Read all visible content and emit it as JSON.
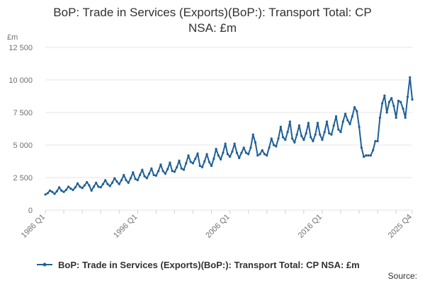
{
  "chart_data": {
    "type": "line",
    "title_line1": "BoP: Trade in Services (Exports)(BoP:): Transport Total: CP",
    "title_line2": "NSA: £m",
    "ylabel": "£m",
    "ylim": [
      0,
      12500
    ],
    "yticks": [
      0,
      2500,
      5000,
      7500,
      10000,
      12500
    ],
    "ytick_labels": [
      "0",
      "2 500",
      "5 000",
      "7 500",
      "10 000",
      "12 500"
    ],
    "xtick_labels": [
      "1986 Q1",
      "1996 Q1",
      "2006 Q1",
      "2016 Q1",
      "2025 Q4"
    ],
    "xtick_positions": [
      0,
      40,
      80,
      120,
      159
    ],
    "x_start": "1986 Q1",
    "x_end": "2025 Q4",
    "grid": true,
    "legend_position": "bottom",
    "series": [
      {
        "name": "BoP: Trade in Services (Exports)(BoP:): Transport Total: CP NSA: £m",
        "color": "#206095",
        "values": [
          1200,
          1300,
          1500,
          1400,
          1250,
          1450,
          1750,
          1500,
          1400,
          1550,
          1800,
          1650,
          1550,
          1750,
          2050,
          1800,
          1700,
          1900,
          2150,
          1900,
          1500,
          1800,
          2100,
          1800,
          1750,
          2000,
          2300,
          2000,
          1850,
          2100,
          2450,
          2200,
          2000,
          2300,
          2700,
          2300,
          2100,
          2450,
          2900,
          2400,
          2300,
          2700,
          3100,
          2600,
          2450,
          2800,
          3200,
          2700,
          2650,
          3000,
          3500,
          3000,
          2800,
          3150,
          3650,
          3000,
          2950,
          3300,
          3800,
          3200,
          3100,
          3600,
          4200,
          3700,
          3600,
          3950,
          4350,
          3400,
          3300,
          3750,
          4300,
          3700,
          3400,
          3950,
          4700,
          4200,
          3900,
          4400,
          5100,
          4300,
          4100,
          4500,
          5100,
          4400,
          4000,
          4400,
          4800,
          4400,
          4300,
          4800,
          5800,
          5200,
          4200,
          4300,
          4600,
          4300,
          4200,
          4800,
          5500,
          5000,
          4900,
          5500,
          6400,
          5600,
          5400,
          6000,
          6800,
          5500,
          5200,
          5800,
          6500,
          5700,
          5400,
          5900,
          6700,
          5600,
          5300,
          5800,
          6700,
          5800,
          5400,
          6000,
          6800,
          5900,
          5800,
          6500,
          7200,
          6200,
          6000,
          6800,
          7400,
          6900,
          6600,
          7200,
          7900,
          7600,
          6400,
          4800,
          4100,
          4200,
          4200,
          4200,
          4600,
          5300,
          5300,
          7100,
          8200,
          8800,
          7500,
          8300,
          8600,
          8000,
          7100,
          8400,
          8300,
          7800,
          7100,
          8700,
          10200,
          8500
        ]
      }
    ],
    "source_label": "Source:"
  }
}
